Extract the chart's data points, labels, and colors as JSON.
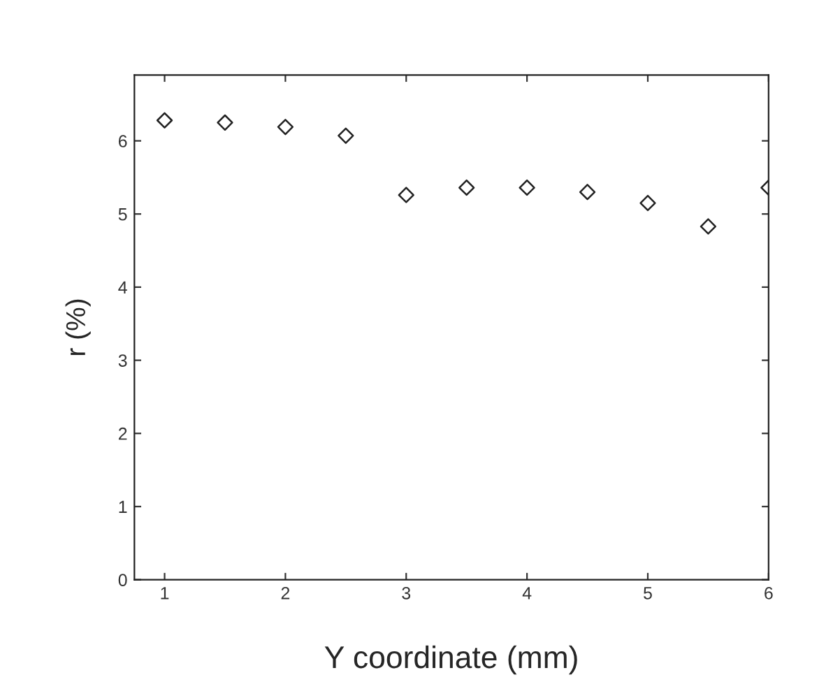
{
  "chart_data": {
    "type": "scatter",
    "xlabel": "Y coordinate (mm)",
    "ylabel": "r (%)",
    "x": [
      1,
      1.5,
      2,
      2.5,
      3,
      3.5,
      4,
      4.5,
      5,
      5.5,
      6
    ],
    "series": [
      {
        "color": "#222222",
        "values": [
          6.28,
          6.25,
          6.19,
          6.07,
          5.26,
          5.36,
          5.36,
          5.3,
          5.15,
          4.83,
          5.36
        ]
      }
    ],
    "xlim": [
      0.75,
      6
    ],
    "ylim": [
      0,
      6.9
    ],
    "xticks": [
      1,
      2,
      3,
      4,
      5,
      6
    ],
    "yticks": [
      0,
      1,
      2,
      3,
      4,
      5,
      6
    ],
    "marker": "diamond",
    "grid": false,
    "legend": false
  }
}
